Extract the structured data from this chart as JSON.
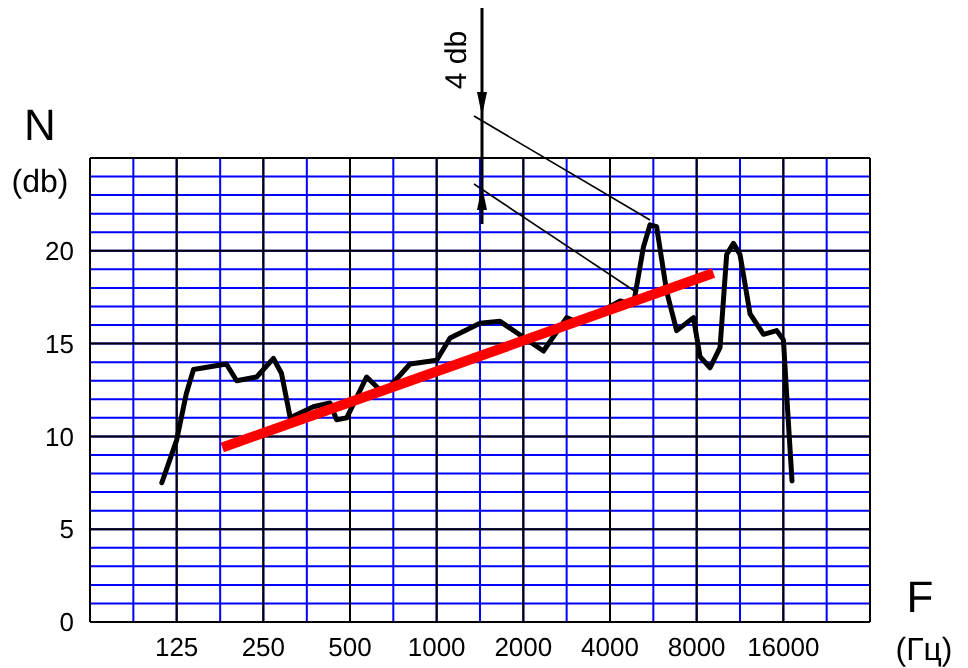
{
  "chart_data": {
    "type": "line",
    "xlabel": "F (Гц)",
    "ylabel": "N (db)",
    "annotations": [
      "4 db"
    ],
    "log": "x",
    "grid": true,
    "marker": "none",
    "line_style": "solid",
    "xlim": [
      62.5,
      32000
    ],
    "xticks": [
      {
        "value": 88.4,
        "label": null
      },
      125,
      {
        "value": 177,
        "label": null
      },
      250,
      {
        "value": 354,
        "label": null
      },
      500,
      {
        "value": 707,
        "label": null
      },
      1000,
      {
        "value": 1414,
        "label": null
      },
      2000,
      {
        "value": 2828,
        "label": null
      },
      4000,
      {
        "value": 5657,
        "label": null
      },
      8000,
      {
        "value": 11314,
        "label": null
      },
      16000,
      {
        "value": 22627,
        "label": null
      }
    ],
    "ylim": [
      0,
      25
    ],
    "yticks": [
      0,
      {
        "value": 1,
        "label": null
      },
      {
        "value": 2,
        "label": null
      },
      {
        "value": 3,
        "label": null
      },
      {
        "value": 4,
        "label": null
      },
      5,
      {
        "value": 6,
        "label": null
      },
      {
        "value": 7,
        "label": null
      },
      {
        "value": 8,
        "label": null
      },
      {
        "value": 9,
        "label": null
      },
      10,
      {
        "value": 11,
        "label": null
      },
      {
        "value": 12,
        "label": null
      },
      {
        "value": 13,
        "label": null
      },
      {
        "value": 14,
        "label": null
      },
      15,
      {
        "value": 16,
        "label": null
      },
      {
        "value": 17,
        "label": null
      },
      {
        "value": 18,
        "label": null
      },
      {
        "value": 19,
        "label": null
      },
      20,
      {
        "value": 21,
        "label": null
      },
      {
        "value": 22,
        "label": null
      },
      {
        "value": 23,
        "label": null
      },
      {
        "value": 24,
        "label": null
      },
      {
        "value": 25,
        "label": null
      }
    ],
    "series": [
      {
        "color": "#000000",
        "x": [
          111,
          125,
          135,
          143,
          186,
          202,
          237,
          271,
          289,
          310,
          373,
          426,
          449,
          487,
          571,
          636,
          689,
          808,
          1000,
          1113,
          1414,
          1660,
          2349,
          2828,
          3147,
          4337,
          4825,
          5226,
          5510,
          5807,
          6294,
          6817,
          7795,
          8219,
          8906,
          9646,
          10170,
          10735,
          11314,
          12262,
          13651,
          15170,
          16013,
          16424,
          17150
        ],
        "values": [
          7.5,
          9.8,
          12.3,
          13.6,
          13.9,
          13.0,
          13.2,
          14.2,
          13.4,
          11.0,
          11.6,
          11.8,
          10.9,
          11.0,
          13.2,
          12.5,
          12.7,
          13.9,
          14.1,
          15.3,
          16.1,
          16.2,
          14.6,
          16.4,
          16.1,
          17.3,
          17.1,
          20.2,
          21.4,
          21.3,
          17.8,
          15.7,
          16.4,
          14.3,
          13.7,
          14.8,
          19.8,
          20.4,
          19.8,
          16.6,
          15.5,
          15.7,
          15.2,
          12.3,
          7.6
        ]
      },
      {
        "color": "#ff0000",
        "x": [
          180,
          9150
        ],
        "values": [
          9.4,
          18.8
        ]
      }
    ]
  }
}
